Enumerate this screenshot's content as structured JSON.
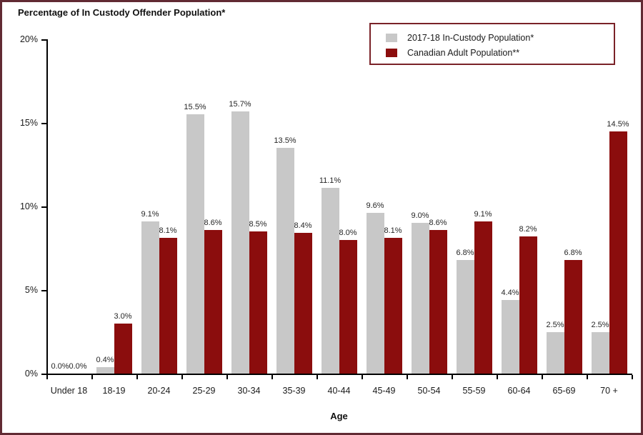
{
  "title": "Percentage of In Custody Offender Population*",
  "frame": {
    "background": "#ffffff",
    "border_color": "#612a33"
  },
  "legend": {
    "border_color": "#7a2228",
    "items": [
      {
        "label": "2017-18 In-Custody Population*",
        "color": "#c8c8c8"
      },
      {
        "label": "Canadian Adult Population**",
        "color": "#8b0d0d"
      }
    ]
  },
  "chart_data": {
    "type": "bar",
    "title": "Percentage of In Custody Offender Population*",
    "xlabel": "Age",
    "ylabel": "",
    "ylim": [
      0,
      20
    ],
    "ytick_values": [
      0,
      5,
      10,
      15,
      20
    ],
    "ytick_labels": [
      "0%",
      "5%",
      "10%",
      "15%",
      "20%"
    ],
    "grid": false,
    "legend_position": "top-right",
    "data_label_format": "{value:.1f}%",
    "categories": [
      "Under 18",
      "18-19",
      "20-24",
      "25-29",
      "30-34",
      "35-39",
      "40-44",
      "45-49",
      "50-54",
      "55-59",
      "60-64",
      "65-69",
      "70 +"
    ],
    "series": [
      {
        "name": "2017-18 In-Custody Population*",
        "key": "in-custody-population",
        "color": "#c8c8c8",
        "values": [
          0.0,
          0.4,
          9.1,
          15.5,
          15.7,
          13.5,
          11.1,
          9.6,
          9.0,
          6.8,
          4.4,
          2.5,
          2.5
        ],
        "labels": [
          "0.0%",
          "0.4%",
          "9.1%",
          "15.5%",
          "15.7%",
          "13.5%",
          "11.1%",
          "9.6%",
          "9.0%",
          "6.8%",
          "4.4%",
          "2.5%",
          "2.5%"
        ]
      },
      {
        "name": "Canadian Adult Population**",
        "key": "canadian-adult-population",
        "color": "#8b0d0d",
        "values": [
          0.0,
          3.0,
          8.1,
          8.6,
          8.5,
          8.4,
          8.0,
          8.1,
          8.6,
          9.1,
          8.2,
          6.8,
          14.5
        ],
        "labels": [
          "0.0%",
          "3.0%",
          "8.1%",
          "8.6%",
          "8.5%",
          "8.4%",
          "8.0%",
          "8.1%",
          "8.6%",
          "9.1%",
          "8.2%",
          "6.8%",
          "14.5%"
        ]
      }
    ]
  }
}
